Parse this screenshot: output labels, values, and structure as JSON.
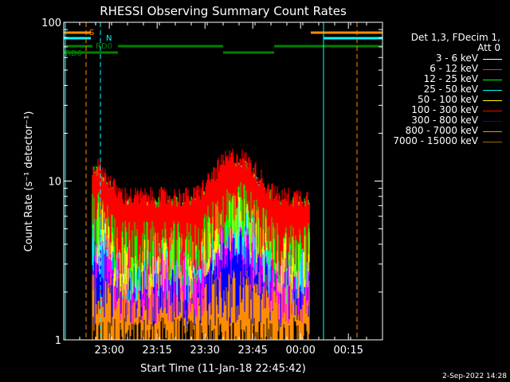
{
  "chart_data": {
    "type": "line",
    "title": "RHESSI Observing Summary Count Rates",
    "xlabel": "Start Time (11-Jan-18 22:45:42)",
    "ylabel": "Count Rate (s⁻¹ detector⁻¹)",
    "yscale": "log",
    "ylim": [
      1,
      100
    ],
    "xlim_minutes": [
      0,
      100
    ],
    "x_tick_labels": [
      "23:00",
      "23:15",
      "23:30",
      "23:45",
      "00:00",
      "00:15"
    ],
    "x_tick_minutes": [
      14.3,
      29.3,
      44.3,
      59.3,
      74.3,
      89.3
    ],
    "y_tick_labels": [
      "1",
      "10",
      "100"
    ],
    "y_tick_values": [
      1,
      10,
      100
    ],
    "grid": false,
    "legend_position": "right",
    "legend_header": [
      "Det 1,3, FDecim 1,",
      "Att 0"
    ],
    "series": [
      {
        "name": "3 - 6 keV",
        "color": "#ffffff"
      },
      {
        "name": "6 - 12 keV",
        "color": "#ff00ff"
      },
      {
        "name": "12 - 25 keV",
        "color": "#00ff00"
      },
      {
        "name": "25 - 50 keV",
        "color": "#00ffff"
      },
      {
        "name": "50 - 100 keV",
        "color": "#ffff00"
      },
      {
        "name": "100 - 300 keV",
        "color": "#ff0000"
      },
      {
        "name": "300 - 800 keV",
        "color": "#0000ff"
      },
      {
        "name": "800 - 7000 keV",
        "color": "#ff8c00"
      },
      {
        "name": "7000 - 15000 keV",
        "color": "#a06a00"
      }
    ],
    "flags": [
      {
        "label": "S",
        "color": "#ff8c00",
        "segments": [
          [
            0,
            8.5
          ],
          [
            77.5,
            100
          ]
        ]
      },
      {
        "label": "N",
        "color": "#00ffff",
        "segments": [
          [
            0,
            8.5
          ],
          [
            81.5,
            100
          ]
        ]
      },
      {
        "label": "RD0",
        "color": "#008000",
        "segments": [
          [
            0,
            9
          ],
          [
            17,
            50
          ],
          [
            66,
            100
          ]
        ]
      },
      {
        "label": "RD6",
        "color": "#008000",
        "segments": [
          [
            0,
            17
          ],
          [
            50,
            66
          ]
        ]
      }
    ],
    "vlines": [
      {
        "x": 7.0,
        "color": "#ff8c00",
        "style": "dashed"
      },
      {
        "x": 11.5,
        "color": "#00ffff",
        "style": "dashed"
      },
      {
        "x": 81.5,
        "color": "#00ffff",
        "style": "solid"
      },
      {
        "x": 92.0,
        "color": "#ff8c00",
        "style": "dashed"
      }
    ],
    "data_span_minutes": [
      9,
      77
    ]
  },
  "footer": {
    "date": "2-Sep-2022 14:28"
  }
}
